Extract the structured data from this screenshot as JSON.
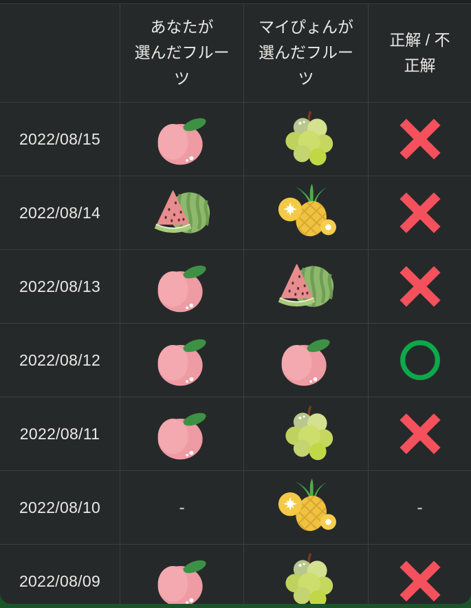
{
  "colors": {
    "page_background": "#1A5429",
    "card_background": "#26292A",
    "card_top_strip": "#1F2220",
    "grid_border": "#3B3F3C",
    "text": "#EBE9E6",
    "correct_mark": "#0CA94B",
    "incorrect_mark": "#F4515D"
  },
  "table": {
    "headers": [
      "",
      "あなたが\n選んだフルー\nツ",
      "マイぴょんが\n選んだフルー\nツ",
      "正解 / 不\n正解"
    ],
    "empty_placeholder": "-",
    "rows": [
      {
        "date": "2022/08/15",
        "your_fruit": "peach",
        "maipyon_fruit": "grapes",
        "result": "incorrect"
      },
      {
        "date": "2022/08/14",
        "your_fruit": "watermelon",
        "maipyon_fruit": "pineapple",
        "result": "incorrect"
      },
      {
        "date": "2022/08/13",
        "your_fruit": "peach",
        "maipyon_fruit": "watermelon",
        "result": "incorrect"
      },
      {
        "date": "2022/08/12",
        "your_fruit": "peach",
        "maipyon_fruit": "peach",
        "result": "correct"
      },
      {
        "date": "2022/08/11",
        "your_fruit": "peach",
        "maipyon_fruit": "grapes",
        "result": "incorrect"
      },
      {
        "date": "2022/08/10",
        "your_fruit": "none",
        "maipyon_fruit": "pineapple",
        "result": "none"
      },
      {
        "date": "2022/08/09",
        "your_fruit": "peach",
        "maipyon_fruit": "grapes",
        "result": "incorrect"
      }
    ]
  }
}
